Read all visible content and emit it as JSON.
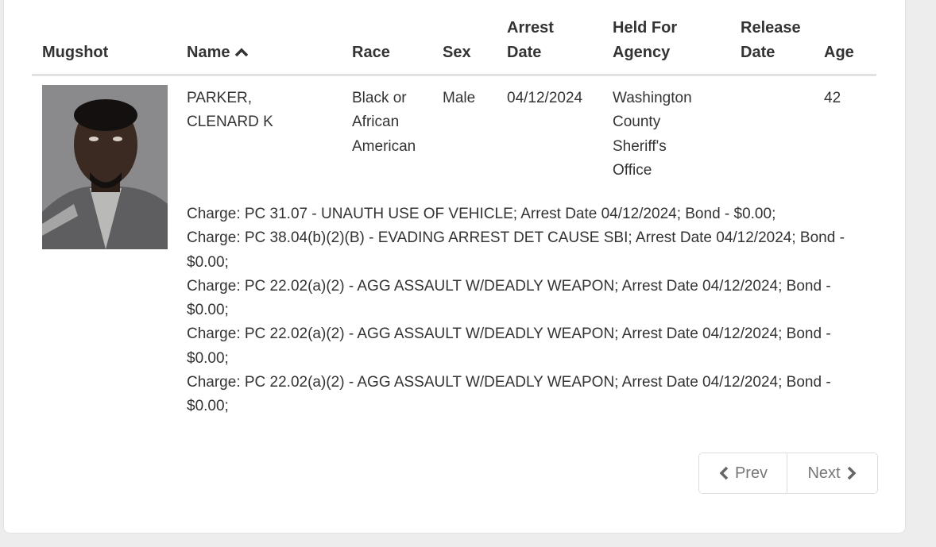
{
  "table": {
    "headers": {
      "mugshot": "Mugshot",
      "name": "Name",
      "race": "Race",
      "sex": "Sex",
      "arrest_date": [
        "Arrest",
        "Date"
      ],
      "held_for_agency": [
        "Held For",
        "Agency"
      ],
      "release_date": [
        "Release",
        "Date"
      ],
      "age": "Age"
    },
    "sort_icon": "chevron-up-icon",
    "rows": [
      {
        "name": [
          "PARKER,",
          "CLENARD K"
        ],
        "race": [
          "Black or",
          "African",
          "American"
        ],
        "sex": "Male",
        "arrest_date": "04/12/2024",
        "held_for_agency": [
          "Washington",
          "County",
          "Sheriff's",
          "Office"
        ],
        "release_date": "",
        "age": "42",
        "charges": [
          "Charge: PC 31.07 - UNAUTH USE OF VEHICLE; Arrest Date 04/12/2024; Bond - $0.00;",
          "Charge: PC 38.04(b)(2)(B) - EVADING ARREST DET CAUSE SBI; Arrest Date 04/12/2024; Bond - $0.00;",
          "Charge: PC 22.02(a)(2) - AGG ASSAULT W/DEADLY WEAPON; Arrest Date 04/12/2024; Bond - $0.00;",
          "Charge: PC 22.02(a)(2) - AGG ASSAULT W/DEADLY WEAPON; Arrest Date 04/12/2024; Bond - $0.00;",
          "Charge: PC 22.02(a)(2) - AGG ASSAULT W/DEADLY WEAPON; Arrest Date 04/12/2024; Bond - $0.00;"
        ]
      }
    ]
  },
  "pagination": {
    "prev": "Prev",
    "next": "Next"
  }
}
